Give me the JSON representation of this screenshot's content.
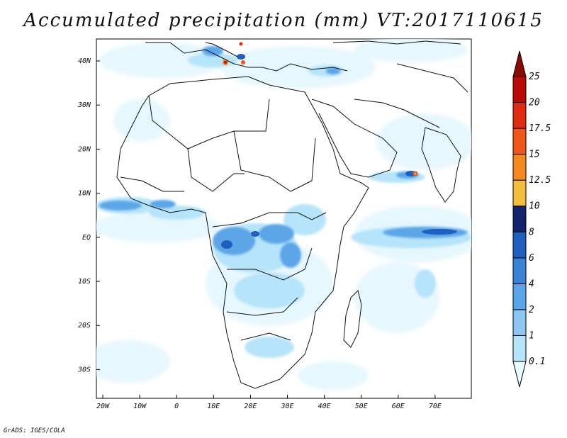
{
  "title": "Accumulated precipitation (mm) VT:2017110615",
  "credit": "GrADS: IGES/COLA",
  "lat_ticks": [
    "40N",
    "30N",
    "20N",
    "10N",
    "EQ",
    "10S",
    "20S",
    "30S"
  ],
  "lon_ticks": [
    "20W",
    "10W",
    "0",
    "10E",
    "20E",
    "30E",
    "40E",
    "50E",
    "60E",
    "70E"
  ],
  "colorbar": {
    "levels": [
      "0.1",
      "1",
      "2",
      "4",
      "6",
      "8",
      "10",
      "12.5",
      "15",
      "17.5",
      "20",
      "25"
    ],
    "colors": [
      "#e8fbff",
      "#b6e4fb",
      "#8cc6f1",
      "#5ba6e8",
      "#3a82d6",
      "#1e5fbf",
      "#13246e",
      "#f5bd3c",
      "#f48a1e",
      "#f0561a",
      "#e02a12",
      "#bb0a06",
      "#8a0a02"
    ]
  }
}
